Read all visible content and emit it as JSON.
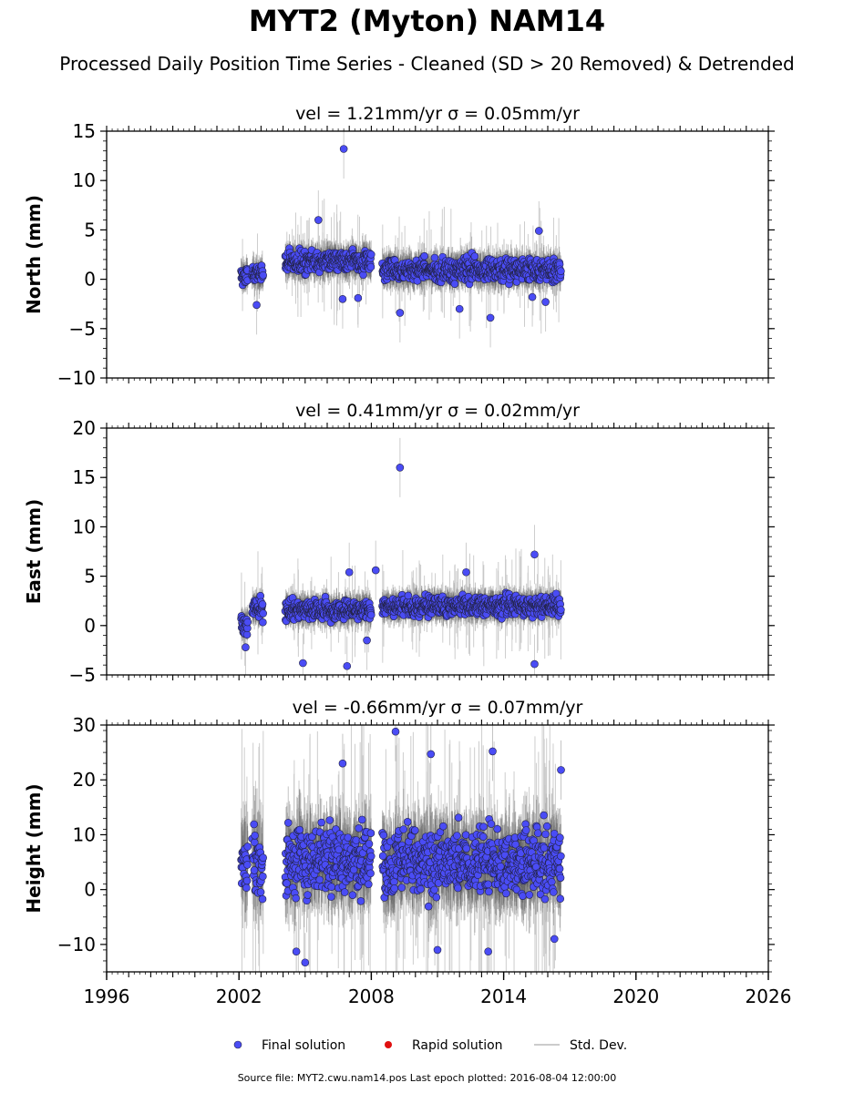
{
  "title": "MYT2 (Myton) NAM14",
  "subtitle": "Processed Daily Position Time Series - Cleaned (SD > 20 Removed) & Detrended",
  "footer": "Source file: MYT2.cwu.nam14.pos  Last epoch plotted: 2016-08-04 12:00:00",
  "colors": {
    "final": "#4a4cf5",
    "rapid": "#e01010",
    "stddev": "#bbbbbb",
    "edge": "#222244"
  },
  "legend": [
    {
      "label": "Final solution",
      "marker": "blue-dot"
    },
    {
      "label": "Rapid solution",
      "marker": "red-dot"
    },
    {
      "label": "Std. Dev.",
      "marker": "grey-line"
    }
  ],
  "chart_data": [
    {
      "type": "scatter",
      "title": "vel = 1.21mm/yr   σ = 0.05mm/yr",
      "ylabel": "North (mm)",
      "xlim": [
        1996,
        2026
      ],
      "ylim": [
        -10,
        15
      ],
      "yticks": [
        -10,
        -5,
        0,
        5,
        10,
        15
      ],
      "ytick_labels": [
        "−10",
        "−5",
        "0",
        "5",
        "10",
        "15"
      ],
      "xtick_labels": [],
      "segments": [
        {
          "x": [
            2002.1,
            2002.4
          ],
          "mean": 0.3,
          "spread": 1.0,
          "err": 1.0
        },
        {
          "x": [
            2002.6,
            2003.1
          ],
          "mean": 0.5,
          "spread": 1.0,
          "err": 1.0
        },
        {
          "x": [
            2004.1,
            2008.0
          ],
          "mean": 1.8,
          "spread": 1.0,
          "err": 1.1
        },
        {
          "x": [
            2008.5,
            2016.6
          ],
          "mean": 1.0,
          "spread": 1.1,
          "err": 1.1
        }
      ],
      "outliers": [
        [
          2006.75,
          13.2
        ],
        [
          2005.6,
          6.0
        ],
        [
          2006.7,
          -2.0
        ],
        [
          2009.3,
          -3.4
        ],
        [
          2013.4,
          -3.9
        ],
        [
          2012.0,
          -3.0
        ],
        [
          2015.6,
          4.9
        ],
        [
          2015.3,
          -1.8
        ],
        [
          2015.9,
          -2.3
        ],
        [
          2002.8,
          -2.6
        ],
        [
          2007.4,
          -1.9
        ]
      ]
    },
    {
      "type": "scatter",
      "title": "vel = 0.41mm/yr   σ = 0.02mm/yr",
      "ylabel": "East (mm)",
      "xlim": [
        1996,
        2026
      ],
      "ylim": [
        -5,
        20
      ],
      "yticks": [
        -5,
        0,
        5,
        10,
        15,
        20
      ],
      "ytick_labels": [
        "−5",
        "0",
        "5",
        "10",
        "15",
        "20"
      ],
      "xtick_labels": [],
      "segments": [
        {
          "x": [
            2002.1,
            2002.4
          ],
          "mean": 0.0,
          "spread": 0.8,
          "err": 1.0
        },
        {
          "x": [
            2002.6,
            2003.1
          ],
          "mean": 1.8,
          "spread": 0.9,
          "err": 1.0
        },
        {
          "x": [
            2004.1,
            2008.0
          ],
          "mean": 1.6,
          "spread": 0.9,
          "err": 1.0
        },
        {
          "x": [
            2008.5,
            2016.6
          ],
          "mean": 2.0,
          "spread": 0.9,
          "err": 1.0
        }
      ],
      "outliers": [
        [
          2009.3,
          16.0
        ],
        [
          2008.2,
          5.6
        ],
        [
          2007.0,
          5.4
        ],
        [
          2015.4,
          7.2
        ],
        [
          2012.3,
          5.4
        ],
        [
          2004.9,
          -3.8
        ],
        [
          2006.9,
          -4.1
        ],
        [
          2015.4,
          -3.9
        ],
        [
          2007.8,
          -1.5
        ],
        [
          2002.3,
          -2.2
        ]
      ]
    },
    {
      "type": "scatter",
      "title": "vel = -0.66mm/yr   σ = 0.07mm/yr",
      "ylabel": "Height (mm)",
      "xlim": [
        1996,
        2026
      ],
      "ylim": [
        -15,
        30
      ],
      "yticks": [
        -10,
        0,
        10,
        20,
        30
      ],
      "ytick_labels": [
        "−10",
        "0",
        "10",
        "20",
        "30"
      ],
      "xtick_labels": [
        "1996",
        "2002",
        "2008",
        "2014",
        "2020",
        "2026"
      ],
      "xticks": [
        1996,
        2002,
        2008,
        2014,
        2020,
        2026
      ],
      "segments": [
        {
          "x": [
            2002.1,
            2002.4
          ],
          "mean": 5.0,
          "spread": 5.5,
          "err": 5.0
        },
        {
          "x": [
            2002.6,
            2003.1
          ],
          "mean": 5.0,
          "spread": 5.5,
          "err": 5.0
        },
        {
          "x": [
            2004.1,
            2008.0
          ],
          "mean": 5.5,
          "spread": 5.5,
          "err": 5.0
        },
        {
          "x": [
            2008.5,
            2016.6
          ],
          "mean": 5.0,
          "spread": 5.5,
          "err": 5.0
        }
      ],
      "outliers": [
        [
          2009.1,
          28.8
        ],
        [
          2013.5,
          25.2
        ],
        [
          2006.7,
          23.0
        ],
        [
          2010.7,
          24.7
        ],
        [
          2016.6,
          21.8
        ],
        [
          2004.6,
          -11.3
        ],
        [
          2005.0,
          -13.3
        ],
        [
          2011.0,
          -11.0
        ],
        [
          2013.3,
          -11.3
        ],
        [
          2016.3,
          -9.0
        ]
      ]
    }
  ]
}
